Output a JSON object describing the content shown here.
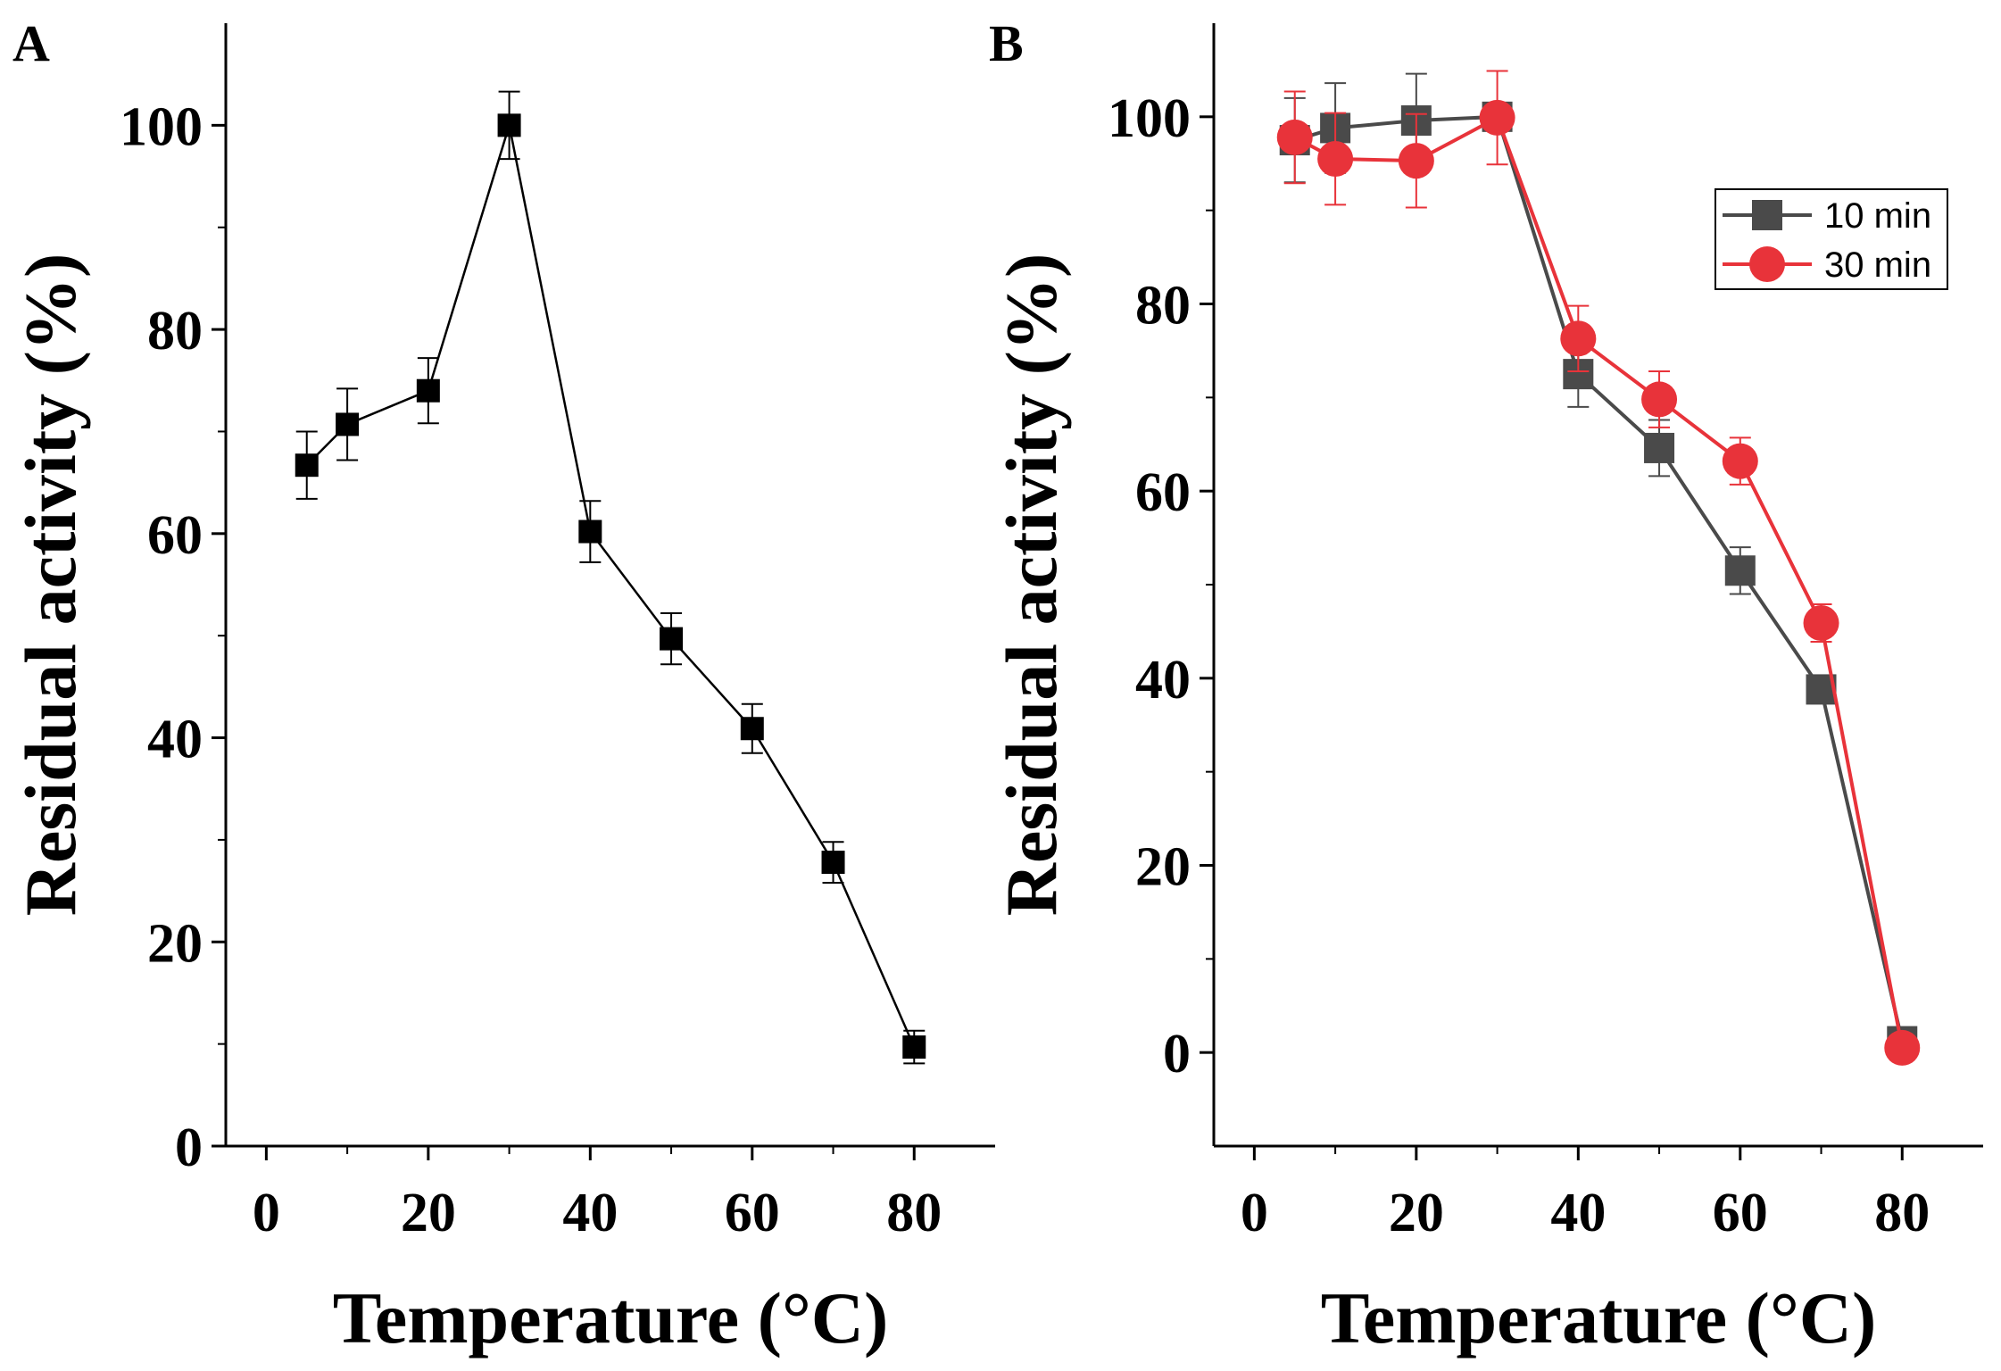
{
  "chart_data": [
    {
      "panel_label": "A",
      "type": "line",
      "xlabel": "Temperature (°C)",
      "ylabel": "Residual activity (%)",
      "xlim": [
        -5,
        90
      ],
      "ylim": [
        0,
        110
      ],
      "xticks": [
        "0",
        "20",
        "40",
        "60",
        "80"
      ],
      "yticks": [
        "0",
        "20",
        "40",
        "60",
        "80",
        "100"
      ],
      "legend": null,
      "series": [
        {
          "name": "",
          "color": "#000000",
          "marker": "square",
          "x": [
            5,
            10,
            20,
            30,
            40,
            50,
            60,
            70,
            80
          ],
          "values": [
            66.7,
            70.7,
            74.0,
            100.0,
            60.2,
            49.7,
            40.9,
            27.8,
            9.7
          ],
          "errors": [
            3.3,
            3.5,
            3.2,
            3.3,
            3.0,
            2.5,
            2.4,
            2.0,
            1.6
          ]
        }
      ]
    },
    {
      "panel_label": "B",
      "type": "line",
      "xlabel": "Temperature (°C)",
      "ylabel": "Residual activity (%)",
      "xlim": [
        -5,
        90
      ],
      "ylim": [
        -10,
        110
      ],
      "xticks": [
        "0",
        "20",
        "40",
        "60",
        "80"
      ],
      "yticks": [
        "0",
        "20",
        "40",
        "60",
        "80",
        "100"
      ],
      "legend": "top-right",
      "series": [
        {
          "name": "10 min",
          "color": "#4a4a4a",
          "marker": "square",
          "x": [
            5,
            10,
            20,
            30,
            40,
            50,
            60,
            70,
            80
          ],
          "values": [
            97.5,
            98.8,
            99.6,
            100.0,
            72.5,
            64.6,
            51.5,
            38.8,
            1.2
          ],
          "errors": [
            4.5,
            4.8,
            5.0,
            0.5,
            3.5,
            3.0,
            2.5,
            1.5,
            0.5
          ]
        },
        {
          "name": "30 min",
          "color": "#e8333a",
          "marker": "circle",
          "x": [
            5,
            10,
            20,
            30,
            40,
            50,
            60,
            70,
            80
          ],
          "values": [
            97.8,
            95.5,
            95.3,
            99.9,
            76.3,
            69.8,
            63.2,
            45.9,
            0.5
          ],
          "errors": [
            4.9,
            4.9,
            5.0,
            5.0,
            3.5,
            3.0,
            2.5,
            2.0,
            0.5
          ]
        }
      ]
    }
  ]
}
